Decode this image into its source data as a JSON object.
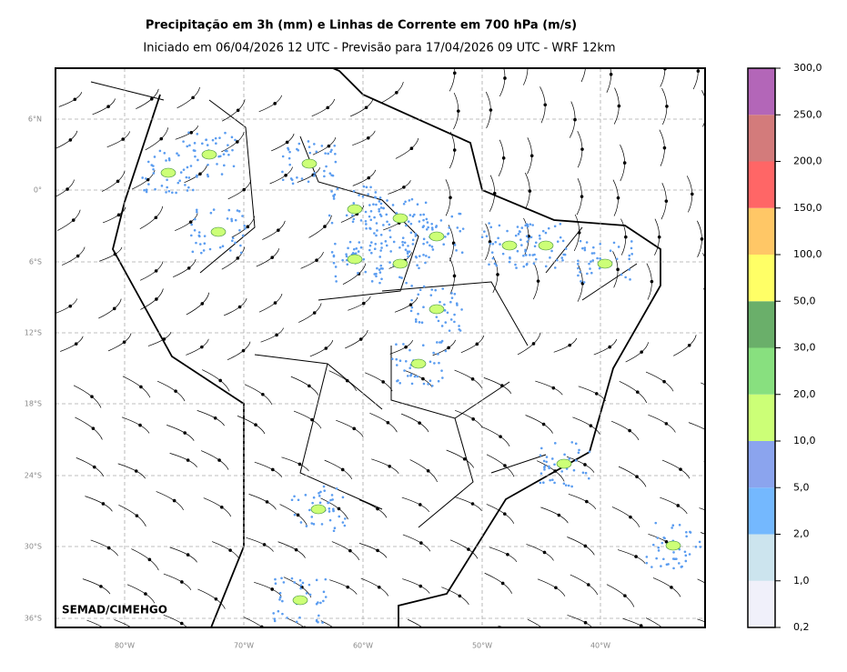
{
  "header": {
    "title": "Precipitação em 3h (mm) e Linhas de Corrente em 700 hPa (m/s)",
    "subtitle": "Iniciado em 06/04/2026 12 UTC - Previsão para 17/04/2026 09 UTC - WRF 12km"
  },
  "map": {
    "lat_labels": [
      "6°N",
      "0°",
      "6°S",
      "12°S",
      "18°S",
      "24°S",
      "30°S",
      "36°S"
    ],
    "lon_labels": [
      "80°W",
      "70°W",
      "60°W",
      "50°W",
      "40°W"
    ],
    "watermark": "SEMAD/CIMEHGO"
  },
  "colorbar": {
    "labels": [
      "0,2",
      "1,0",
      "2,0",
      "5,0",
      "10,0",
      "20,0",
      "30,0",
      "50,0",
      "100,0",
      "150,0",
      "200,0",
      "250,0",
      "300,0"
    ],
    "colors": [
      "#f0f0fa",
      "#cce4ee",
      "#74b8fe",
      "#8ba4ee",
      "#ccff77",
      "#88e07f",
      "#6aaf6a",
      "#ffff66",
      "#ffc766",
      "#ff6666",
      "#d37b7b",
      "#b366b8"
    ]
  }
}
